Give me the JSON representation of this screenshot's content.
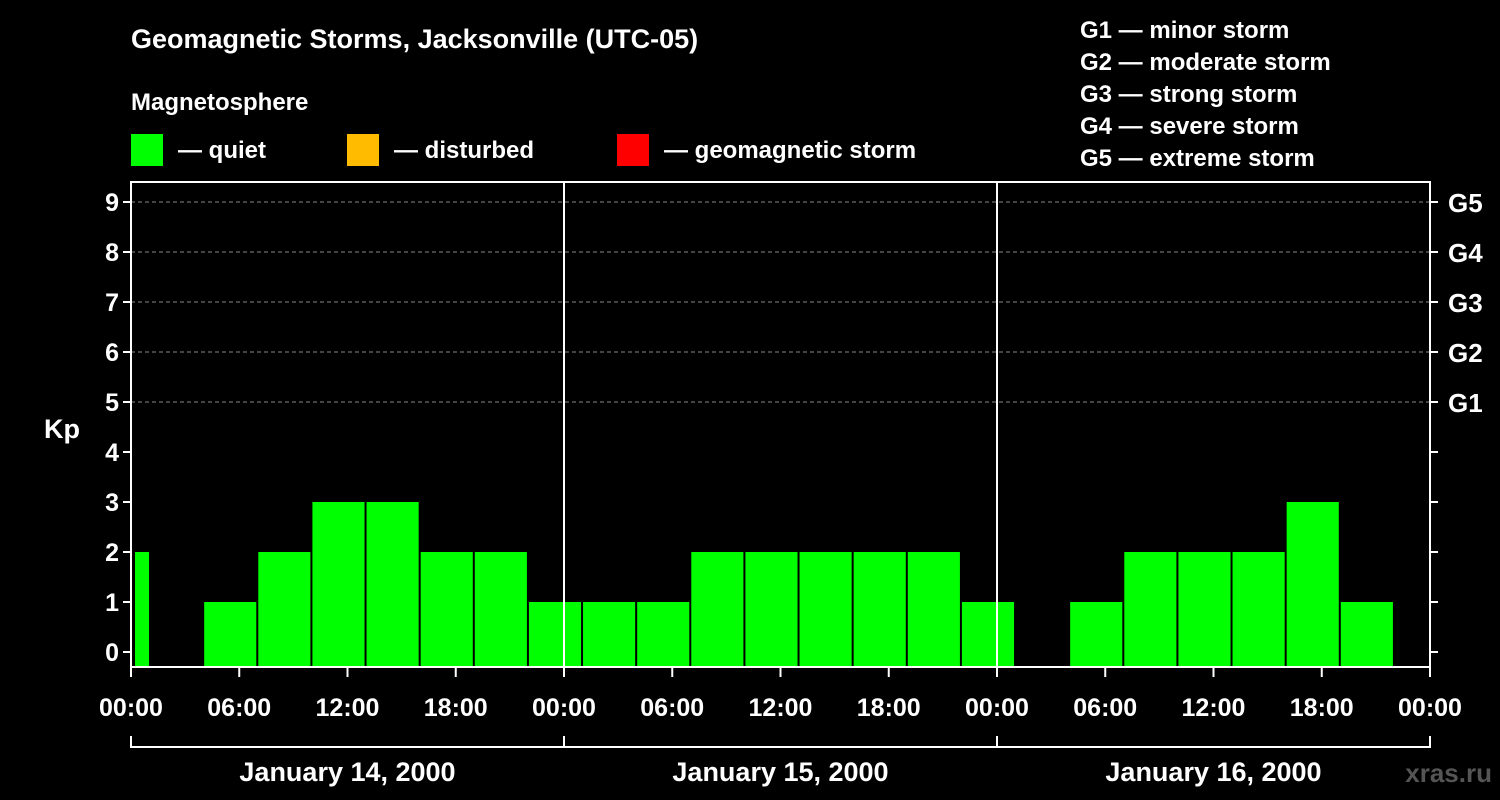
{
  "chart_data": {
    "type": "bar",
    "title": "Geomagnetic Storms, Jacksonville (UTC-05)",
    "legend_title": "Magnetosphere",
    "legend": [
      {
        "label": "— quiet",
        "color": "#00ff00"
      },
      {
        "label": "— disturbed",
        "color": "#ffbb00"
      },
      {
        "label": "— geomagnetic storm",
        "color": "#ff0000"
      }
    ],
    "storm_scale": [
      "G1 — minor storm",
      "G2 — moderate storm",
      "G3 — strong storm",
      "G4 — severe storm",
      "G5 — extreme storm"
    ],
    "ylabel": "Kp",
    "ylim": [
      0,
      9
    ],
    "y_ticks": [
      "0",
      "1",
      "2",
      "3",
      "4",
      "5",
      "6",
      "7",
      "8",
      "9"
    ],
    "right_ticks": [
      {
        "kp": 5,
        "label": "G1"
      },
      {
        "kp": 6,
        "label": "G2"
      },
      {
        "kp": 7,
        "label": "G3"
      },
      {
        "kp": 8,
        "label": "G4"
      },
      {
        "kp": 9,
        "label": "G5"
      }
    ],
    "x_range_hours": [
      0,
      72
    ],
    "x_ticks": [
      "00:00",
      "06:00",
      "12:00",
      "18:00",
      "00:00",
      "06:00",
      "12:00",
      "18:00",
      "00:00",
      "06:00",
      "12:00",
      "18:00",
      "00:00"
    ],
    "x_tick_step_hours": 6,
    "days": [
      "January 14, 2000",
      "January 15, 2000",
      "January 16, 2000"
    ],
    "day_hours": 24,
    "bars": [
      {
        "start": 0,
        "end": 1,
        "kp": 2
      },
      {
        "start": 4,
        "end": 7,
        "kp": 1
      },
      {
        "start": 7,
        "end": 10,
        "kp": 2
      },
      {
        "start": 10,
        "end": 13,
        "kp": 3
      },
      {
        "start": 13,
        "end": 16,
        "kp": 3
      },
      {
        "start": 16,
        "end": 19,
        "kp": 2
      },
      {
        "start": 19,
        "end": 22,
        "kp": 2
      },
      {
        "start": 22,
        "end": 25,
        "kp": 1
      },
      {
        "start": 25,
        "end": 28,
        "kp": 1
      },
      {
        "start": 28,
        "end": 31,
        "kp": 1
      },
      {
        "start": 31,
        "end": 34,
        "kp": 2
      },
      {
        "start": 34,
        "end": 37,
        "kp": 2
      },
      {
        "start": 37,
        "end": 40,
        "kp": 2
      },
      {
        "start": 40,
        "end": 43,
        "kp": 2
      },
      {
        "start": 43,
        "end": 46,
        "kp": 2
      },
      {
        "start": 46,
        "end": 49,
        "kp": 1
      },
      {
        "start": 49,
        "end": 52,
        "kp": 0
      },
      {
        "start": 52,
        "end": 55,
        "kp": 1
      },
      {
        "start": 55,
        "end": 58,
        "kp": 2
      },
      {
        "start": 58,
        "end": 61,
        "kp": 2
      },
      {
        "start": 61,
        "end": 64,
        "kp": 2
      },
      {
        "start": 64,
        "end": 67,
        "kp": 3
      },
      {
        "start": 67,
        "end": 70,
        "kp": 1
      }
    ],
    "grid_dashed_kp": [
      5,
      6,
      7,
      8,
      9
    ],
    "watermark": "xras.ru"
  }
}
